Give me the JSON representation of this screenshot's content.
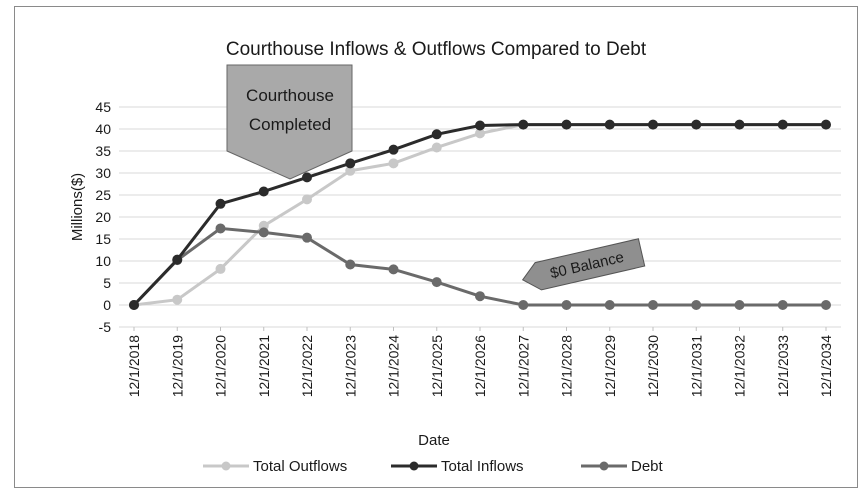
{
  "chart_data": {
    "type": "line",
    "title": "Courthouse Inflows & Outflows Compared to Debt",
    "xlabel": "Date",
    "ylabel": "Millions($)",
    "ylim": [
      -5,
      45
    ],
    "yticks": [
      -5,
      0,
      5,
      10,
      15,
      20,
      25,
      30,
      35,
      40,
      45
    ],
    "grid": true,
    "legend_position": "bottom",
    "categories": [
      "12/1/2018",
      "12/1/2019",
      "12/1/2020",
      "12/1/2021",
      "12/1/2022",
      "12/1/2023",
      "12/1/2024",
      "12/1/2025",
      "12/1/2026",
      "12/1/2027",
      "12/1/2028",
      "12/1/2029",
      "12/1/2030",
      "12/1/2031",
      "12/1/2032",
      "12/1/2033",
      "12/1/2034"
    ],
    "series": [
      {
        "name": "Total Outflows",
        "color": "#c8c8c8",
        "values": [
          0,
          1.2,
          8.2,
          18,
          24,
          30.5,
          32.2,
          35.8,
          39,
          41,
          41,
          41,
          41,
          41,
          41,
          41,
          41
        ]
      },
      {
        "name": "Total Inflows",
        "color": "#2b2b2b",
        "values": [
          0,
          10.3,
          23,
          25.8,
          29,
          32.2,
          35.3,
          38.8,
          40.8,
          41,
          41,
          41,
          41,
          41,
          41,
          41,
          41
        ]
      },
      {
        "name": "Debt",
        "color": "#6a6a6a",
        "values": [
          0,
          10.2,
          17.4,
          16.5,
          15.3,
          9.2,
          8.1,
          5.2,
          2,
          0,
          0,
          0,
          0,
          0,
          0,
          0,
          0
        ]
      }
    ],
    "annotations": [
      {
        "text_lines": [
          "Courthouse",
          "Completed"
        ],
        "shape": "down-arrow",
        "fill": "#a9a9a9"
      },
      {
        "text": "$0 Balance",
        "shape": "left-arrow",
        "fill": "#8f8f8f"
      }
    ]
  }
}
